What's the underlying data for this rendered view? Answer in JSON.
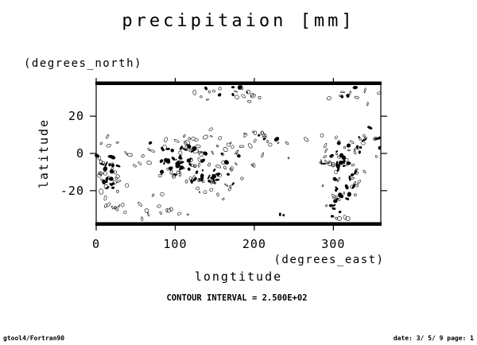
{
  "chart_data": {
    "type": "contour",
    "title": "precipitaion [mm]",
    "xlabel": "longtitude",
    "xunit": "(degrees_east)",
    "ylabel": "latitude",
    "yunit": "(degrees_north)",
    "xlim": [
      0,
      360
    ],
    "ylim": [
      -38,
      38
    ],
    "xticks": [
      0,
      100,
      200,
      300
    ],
    "yticks": [
      -20,
      0,
      20
    ],
    "contour_interval_text": "CONTOUR INTERVAL = 2.500E+02",
    "grid": false
  },
  "footer": {
    "left": "gtool4/Fortran90",
    "right": "date: 3/ 5/ 9 page: 1"
  },
  "colors": {
    "ink": "#000000",
    "background": "#ffffff"
  }
}
